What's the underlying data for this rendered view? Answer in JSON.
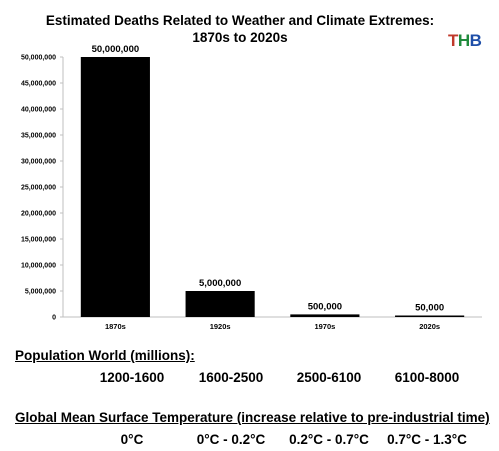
{
  "chart_data": {
    "type": "bar",
    "title_line1": "Estimated Deaths Related to Weather and Climate Extremes:",
    "title_line2": "1870s to 2020s",
    "categories": [
      "1870s",
      "1920s",
      "1970s",
      "2020s"
    ],
    "values": [
      50000000,
      5000000,
      500000,
      50000
    ],
    "data_labels": [
      "50,000,000",
      "5,000,000",
      "500,000",
      "50,000"
    ],
    "ylim": [
      0,
      50000000
    ],
    "yticks": [
      0,
      5000000,
      10000000,
      15000000,
      20000000,
      25000000,
      30000000,
      35000000,
      40000000,
      45000000,
      50000000
    ],
    "ytick_labels": [
      "0",
      "5,000,000",
      "10,000,000",
      "15,000,000",
      "20,000,000",
      "25,000,000",
      "30,000,000",
      "35,000,000",
      "40,000,000",
      "45,000,000",
      "50,000,000"
    ],
    "xlabel": "",
    "ylabel": "",
    "grid": false,
    "bar_color": "#000000"
  },
  "logo": {
    "letters": [
      "T",
      "H",
      "B"
    ],
    "colors": [
      "#c0392b",
      "#1f8a3b",
      "#1f4fa8"
    ]
  },
  "population": {
    "label": "Population World (millions):",
    "values": [
      "1200-1600",
      "1600-2500",
      "2500-6100",
      "6100-8000"
    ]
  },
  "temperature": {
    "label": "Global Mean Surface Temperature (increase relative to pre-industrial time)",
    "values": [
      "0°C",
      "0°C - 0.2°C",
      "0.2°C - 0.7°C",
      "0.7°C - 1.3°C"
    ]
  }
}
